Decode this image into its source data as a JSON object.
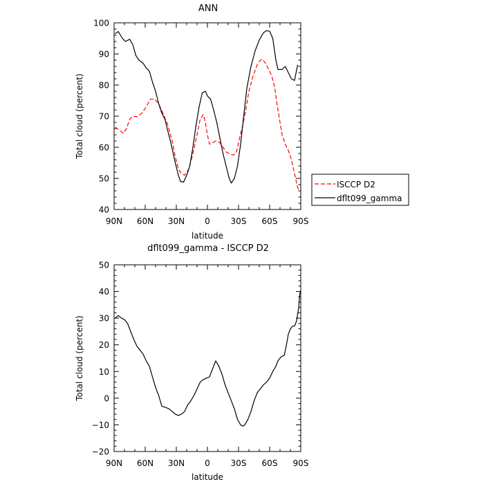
{
  "chart_data": [
    {
      "type": "line",
      "title": "ANN",
      "xlabel": "latitude",
      "ylabel": "Total cloud (percent)",
      "xlim": [
        90,
        -90
      ],
      "ylim": [
        40,
        100
      ],
      "yticks": [
        "40",
        "50",
        "60",
        "70",
        "80",
        "90",
        "100"
      ],
      "xticks": [
        "90N",
        "60N",
        "30N",
        "0",
        "30S",
        "60S",
        "90S"
      ],
      "legend": {
        "placement": "right"
      },
      "series": [
        {
          "name": "ISCCP D2",
          "color": "#ff0000",
          "dash": "dashed",
          "points": [
            [
              89,
              66.5
            ],
            [
              85,
              65.5
            ],
            [
              81,
              64.5
            ],
            [
              78,
              66
            ],
            [
              75,
              69
            ],
            [
              72,
              70
            ],
            [
              68,
              69.8
            ],
            [
              63,
              71
            ],
            [
              59,
              73
            ],
            [
              55,
              75.5
            ],
            [
              51,
              75.5
            ],
            [
              47,
              74
            ],
            [
              43,
              71
            ],
            [
              38,
              67
            ],
            [
              34,
              62
            ],
            [
              31,
              57
            ],
            [
              28,
              53
            ],
            [
              25,
              51.5
            ],
            [
              22,
              51
            ],
            [
              18,
              53
            ],
            [
              14,
              58
            ],
            [
              10,
              64
            ],
            [
              7,
              69
            ],
            [
              4,
              70.5
            ],
            [
              2,
              68
            ],
            [
              0,
              64
            ],
            [
              -2,
              61
            ],
            [
              -5,
              61.5
            ],
            [
              -8,
              62
            ],
            [
              -12,
              61.5
            ],
            [
              -15,
              60
            ],
            [
              -18,
              58.5
            ],
            [
              -22,
              57.8
            ],
            [
              -25,
              57.5
            ],
            [
              -28,
              58.5
            ],
            [
              -31,
              63
            ],
            [
              -34,
              67
            ],
            [
              -37,
              72
            ],
            [
              -40,
              78
            ],
            [
              -44,
              83
            ],
            [
              -48,
              86.5
            ],
            [
              -51,
              88
            ],
            [
              -53,
              88.3
            ],
            [
              -56,
              87
            ],
            [
              -59,
              85
            ],
            [
              -62,
              83
            ],
            [
              -65,
              79
            ],
            [
              -67,
              74
            ],
            [
              -70,
              68
            ],
            [
              -72,
              64
            ],
            [
              -75,
              61
            ],
            [
              -78,
              59
            ],
            [
              -81,
              56
            ],
            [
              -83,
              53
            ],
            [
              -85,
              50
            ],
            [
              -87,
              47
            ],
            [
              -89,
              46
            ]
          ]
        },
        {
          "name": "dflt099_gamma",
          "color": "#000000",
          "dash": "solid",
          "points": [
            [
              89,
              96.5
            ],
            [
              86,
              97.2
            ],
            [
              82,
              95
            ],
            [
              79,
              94
            ],
            [
              75,
              94.7
            ],
            [
              72,
              93
            ],
            [
              69,
              89.5
            ],
            [
              66,
              88
            ],
            [
              62,
              87
            ],
            [
              59,
              85.5
            ],
            [
              56,
              84.5
            ],
            [
              53,
              81
            ],
            [
              50,
              78
            ],
            [
              47,
              74
            ],
            [
              44,
              71
            ],
            [
              41,
              69
            ],
            [
              38,
              65
            ],
            [
              35,
              61
            ],
            [
              31,
              55
            ],
            [
              28,
              51
            ],
            [
              26,
              49
            ],
            [
              23,
              48.8
            ],
            [
              20,
              51
            ],
            [
              17,
              54
            ],
            [
              14,
              60
            ],
            [
              11,
              67
            ],
            [
              8,
              73
            ],
            [
              5,
              77.5
            ],
            [
              2,
              78
            ],
            [
              0,
              76.5
            ],
            [
              -3,
              75.5
            ],
            [
              -6,
              72
            ],
            [
              -9,
              68
            ],
            [
              -12,
              63
            ],
            [
              -15,
              58
            ],
            [
              -18,
              54
            ],
            [
              -21,
              50
            ],
            [
              -23,
              48.5
            ],
            [
              -26,
              50
            ],
            [
              -29,
              54
            ],
            [
              -32,
              61
            ],
            [
              -35,
              70
            ],
            [
              -38,
              79
            ],
            [
              -42,
              86
            ],
            [
              -46,
              91
            ],
            [
              -50,
              94.5
            ],
            [
              -54,
              96.8
            ],
            [
              -57,
              97.5
            ],
            [
              -60,
              97.3
            ],
            [
              -63,
              95
            ],
            [
              -66,
              88
            ],
            [
              -68,
              85
            ],
            [
              -72,
              85
            ],
            [
              -75,
              86
            ],
            [
              -78,
              84
            ],
            [
              -81,
              82
            ],
            [
              -84,
              81.5
            ],
            [
              -87,
              86.5
            ]
          ]
        }
      ]
    },
    {
      "type": "line",
      "title": "dflt099_gamma - ISCCP D2",
      "xlabel": "latitude",
      "ylabel": "Total cloud (percent)",
      "xlim": [
        90,
        -90
      ],
      "ylim": [
        -20,
        50
      ],
      "yticks": [
        "−20",
        "−10",
        "0",
        "10",
        "20",
        "30",
        "40",
        "50"
      ],
      "xticks": [
        "90N",
        "60N",
        "30N",
        "0",
        "30S",
        "60S",
        "90S"
      ],
      "series": [
        {
          "color": "#000000",
          "dash": "solid",
          "points": [
            [
              89,
              30
            ],
            [
              86,
              31
            ],
            [
              83,
              30
            ],
            [
              80,
              29.5
            ],
            [
              77,
              28
            ],
            [
              74,
              25
            ],
            [
              71,
              22
            ],
            [
              68,
              19.5
            ],
            [
              65,
              18
            ],
            [
              62,
              16.5
            ],
            [
              59,
              14
            ],
            [
              56,
              12
            ],
            [
              53,
              8
            ],
            [
              50,
              4
            ],
            [
              47,
              1
            ],
            [
              44,
              -3
            ],
            [
              40,
              -3.5
            ],
            [
              37,
              -4
            ],
            [
              34,
              -5
            ],
            [
              31,
              -6
            ],
            [
              28,
              -6.5
            ],
            [
              25,
              -6
            ],
            [
              22,
              -5
            ],
            [
              19,
              -2.5
            ],
            [
              16,
              -1
            ],
            [
              13,
              1
            ],
            [
              10,
              3.5
            ],
            [
              7,
              6
            ],
            [
              4,
              7
            ],
            [
              1,
              7.5
            ],
            [
              -2,
              8
            ],
            [
              -5,
              11
            ],
            [
              -8,
              14
            ],
            [
              -11,
              12
            ],
            [
              -14,
              9
            ],
            [
              -17,
              5
            ],
            [
              -20,
              2
            ],
            [
              -23,
              -1
            ],
            [
              -26,
              -4
            ],
            [
              -29,
              -8
            ],
            [
              -32,
              -10
            ],
            [
              -34,
              -10.5
            ],
            [
              -36,
              -10
            ],
            [
              -39,
              -8
            ],
            [
              -42,
              -5
            ],
            [
              -45,
              -1
            ],
            [
              -48,
              2
            ],
            [
              -51,
              3.5
            ],
            [
              -54,
              5
            ],
            [
              -57,
              6
            ],
            [
              -60,
              7.5
            ],
            [
              -63,
              10
            ],
            [
              -66,
              12
            ],
            [
              -68,
              14
            ],
            [
              -71,
              15.5
            ],
            [
              -74,
              16
            ],
            [
              -76,
              19.5
            ],
            [
              -78,
              24
            ],
            [
              -80,
              26
            ],
            [
              -82,
              27
            ],
            [
              -84,
              27
            ],
            [
              -86,
              29
            ],
            [
              -88,
              34
            ],
            [
              -89,
              39
            ],
            [
              -90,
              40.5
            ]
          ]
        }
      ]
    }
  ]
}
